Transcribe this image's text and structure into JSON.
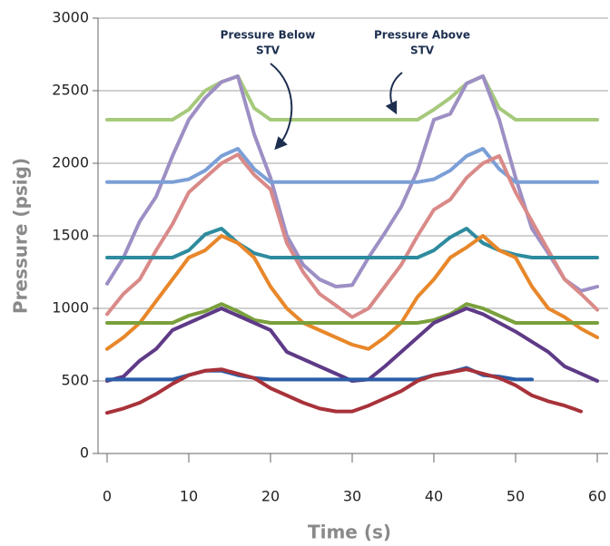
{
  "chart_data": {
    "type": "line",
    "xlabel": "Time (s)",
    "ylabel": "Pressure (psig)",
    "annotations": [
      {
        "lines": [
          "Pressure Below",
          "STV"
        ]
      },
      {
        "lines": [
          "Pressure Above",
          "STV"
        ]
      }
    ],
    "x": [
      0,
      2,
      4,
      6,
      8,
      10,
      12,
      14,
      16,
      18,
      20,
      22,
      24,
      26,
      28,
      30,
      32,
      34,
      36,
      38,
      40,
      42,
      44,
      46,
      48,
      50,
      52,
      54,
      56,
      58,
      60
    ],
    "xlim": [
      0,
      60
    ],
    "xticks": [
      0,
      10,
      20,
      30,
      40,
      50,
      60
    ],
    "ylim": [
      0,
      3000
    ],
    "yticks": [
      0,
      500,
      1000,
      1500,
      2000,
      2500,
      3000
    ],
    "grid": true,
    "series": [
      {
        "color": "#a6c97c",
        "values": [
          2300,
          2300,
          2300,
          2300,
          2300,
          2370,
          2500,
          2560,
          2600,
          2380,
          2300,
          2300,
          2300,
          2300,
          2300,
          2300,
          2300,
          2300,
          2300,
          2300,
          2370,
          2450,
          2550,
          2600,
          2380,
          2300,
          2300,
          2300,
          2300,
          2300,
          2300
        ]
      },
      {
        "color": "#9d8fc4",
        "values": [
          1170,
          1350,
          1600,
          1770,
          2050,
          2300,
          2450,
          2560,
          2600,
          2200,
          1900,
          1500,
          1300,
          1200,
          1150,
          1160,
          1350,
          1520,
          1700,
          1950,
          2300,
          2340,
          2550,
          2600,
          2300,
          1900,
          1550,
          1380,
          1200,
          1120,
          1150
        ]
      },
      {
        "color": "#7b9fd6",
        "values": [
          1870,
          1870,
          1870,
          1870,
          1870,
          1890,
          1950,
          2050,
          2100,
          1960,
          1870,
          1870,
          1870,
          1870,
          1870,
          1870,
          1870,
          1870,
          1870,
          1870,
          1890,
          1950,
          2050,
          2100,
          1960,
          1870,
          1870,
          1870,
          1870,
          1870,
          1870
        ]
      },
      {
        "color": "#d98a88",
        "values": [
          960,
          1100,
          1200,
          1400,
          1580,
          1800,
          1900,
          2000,
          2060,
          1920,
          1820,
          1450,
          1250,
          1100,
          1020,
          940,
          1000,
          1150,
          1300,
          1500,
          1680,
          1750,
          1900,
          2000,
          2050,
          1800,
          1600,
          1400,
          1200,
          1100,
          990
        ]
      },
      {
        "color": "#2e8b9e",
        "values": [
          1350,
          1350,
          1350,
          1350,
          1350,
          1400,
          1510,
          1550,
          1450,
          1380,
          1350,
          1350,
          1350,
          1350,
          1350,
          1350,
          1350,
          1350,
          1350,
          1350,
          1400,
          1490,
          1550,
          1450,
          1400,
          1370,
          1350,
          1350,
          1350,
          1350,
          1350
        ]
      },
      {
        "color": "#e8872a",
        "values": [
          720,
          800,
          900,
          1050,
          1200,
          1350,
          1400,
          1500,
          1450,
          1350,
          1150,
          1000,
          900,
          850,
          800,
          750,
          720,
          800,
          900,
          1080,
          1200,
          1350,
          1420,
          1500,
          1400,
          1350,
          1150,
          1000,
          940,
          860,
          800
        ]
      },
      {
        "color": "#7aa03c",
        "values": [
          900,
          900,
          900,
          900,
          900,
          950,
          980,
          1030,
          980,
          920,
          900,
          900,
          900,
          900,
          900,
          900,
          900,
          900,
          900,
          900,
          920,
          960,
          1030,
          1000,
          950,
          900,
          900,
          900,
          900,
          900,
          900
        ]
      },
      {
        "color": "#5e3a87",
        "values": [
          500,
          530,
          640,
          720,
          850,
          900,
          950,
          1000,
          950,
          900,
          850,
          700,
          650,
          600,
          550,
          500,
          510,
          600,
          700,
          800,
          900,
          950,
          1000,
          960,
          900,
          840,
          770,
          700,
          600,
          550,
          500
        ]
      },
      {
        "color": "#2a5ea8",
        "values": [
          510,
          510,
          510,
          510,
          510,
          540,
          570,
          570,
          540,
          520,
          510,
          510,
          510,
          510,
          510,
          510,
          510,
          510,
          510,
          510,
          540,
          560,
          590,
          540,
          530,
          510,
          510,
          null,
          null,
          null,
          null
        ]
      },
      {
        "color": "#a8323a",
        "values": [
          280,
          310,
          350,
          410,
          480,
          540,
          570,
          580,
          550,
          520,
          450,
          400,
          350,
          310,
          290,
          290,
          330,
          380,
          430,
          500,
          540,
          560,
          580,
          550,
          520,
          470,
          400,
          360,
          330,
          290,
          null
        ]
      }
    ]
  }
}
